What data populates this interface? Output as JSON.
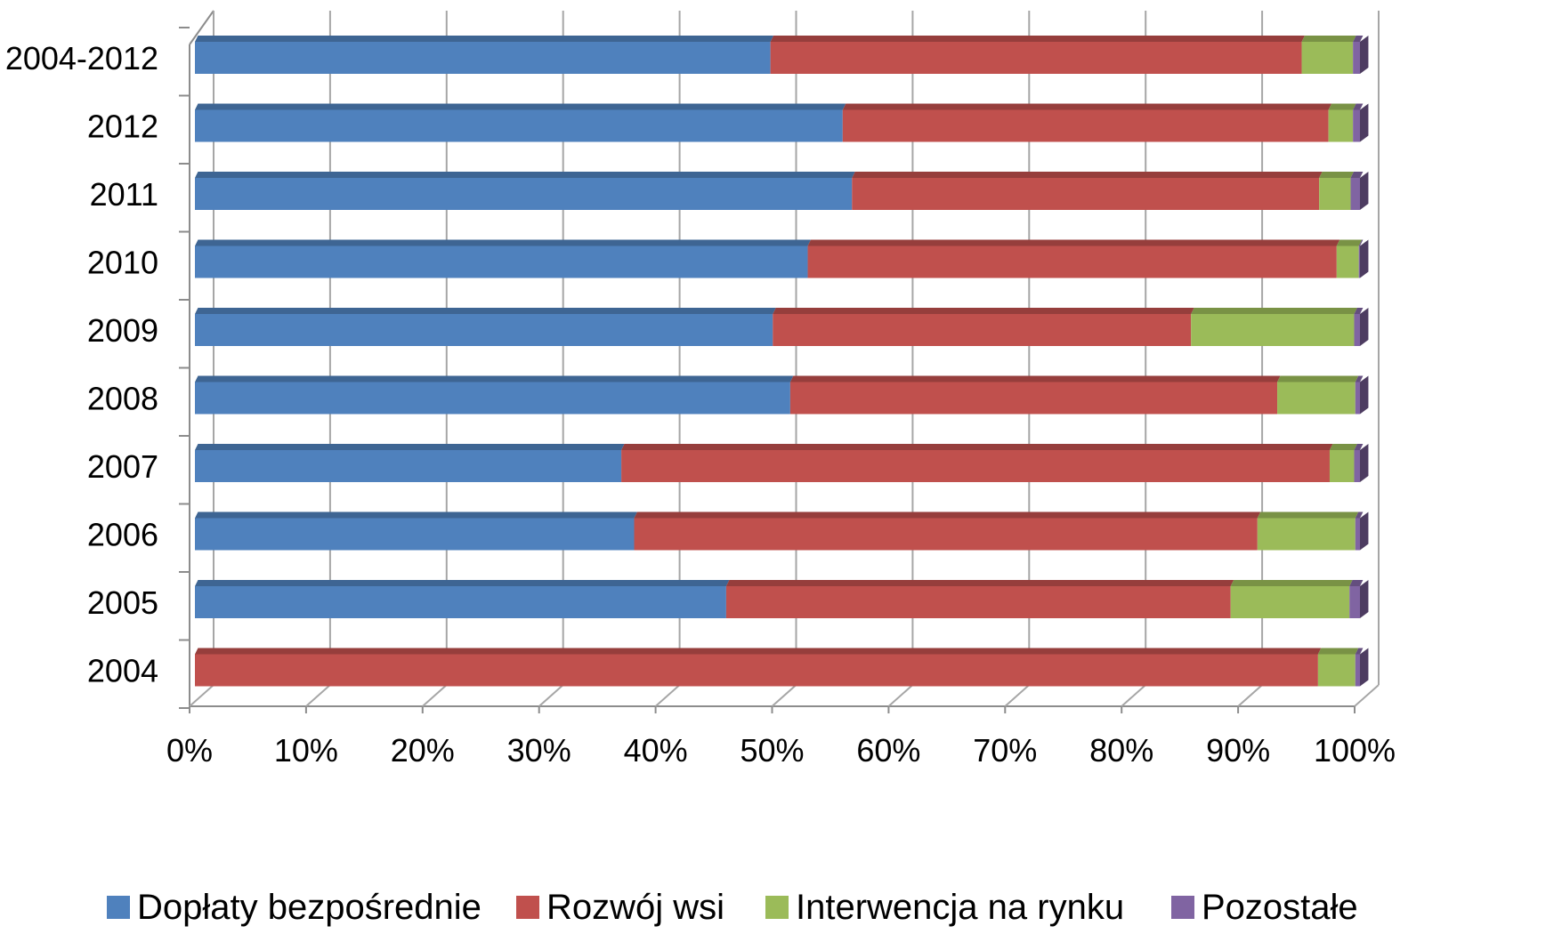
{
  "chart_data": {
    "type": "bar",
    "orientation": "horizontal",
    "stacking": "percent",
    "style": "3d",
    "categories": [
      "2004-2012",
      "2012",
      "2011",
      "2010",
      "2009",
      "2008",
      "2007",
      "2006",
      "2005",
      "2004"
    ],
    "series": [
      {
        "name": "Dopłaty bezpośrednie",
        "color": "#4F81BD",
        "values": [
          49.4,
          55.6,
          56.4,
          52.6,
          49.6,
          51.1,
          36.6,
          37.7,
          45.6,
          0.0
        ]
      },
      {
        "name": "Rozwój wsi",
        "color": "#C0504D",
        "values": [
          45.6,
          41.7,
          40.1,
          45.4,
          35.9,
          41.8,
          60.8,
          53.5,
          43.3,
          96.4
        ]
      },
      {
        "name": "Interwencja na rynku",
        "color": "#9BBB59",
        "values": [
          4.4,
          2.1,
          2.7,
          1.9,
          14.0,
          6.7,
          2.1,
          8.4,
          10.2,
          3.2
        ]
      },
      {
        "name": "Pozostałe",
        "color": "#8064A2",
        "values": [
          0.6,
          0.6,
          0.8,
          0.1,
          0.5,
          0.4,
          0.5,
          0.4,
          0.9,
          0.4
        ]
      }
    ],
    "xlim": [
      0,
      100
    ],
    "xticks": [
      "0%",
      "10%",
      "20%",
      "30%",
      "40%",
      "50%",
      "60%",
      "70%",
      "80%",
      "90%",
      "100%"
    ],
    "grid": true,
    "legend": "bottom",
    "title": "",
    "xlabel": "",
    "ylabel": ""
  }
}
